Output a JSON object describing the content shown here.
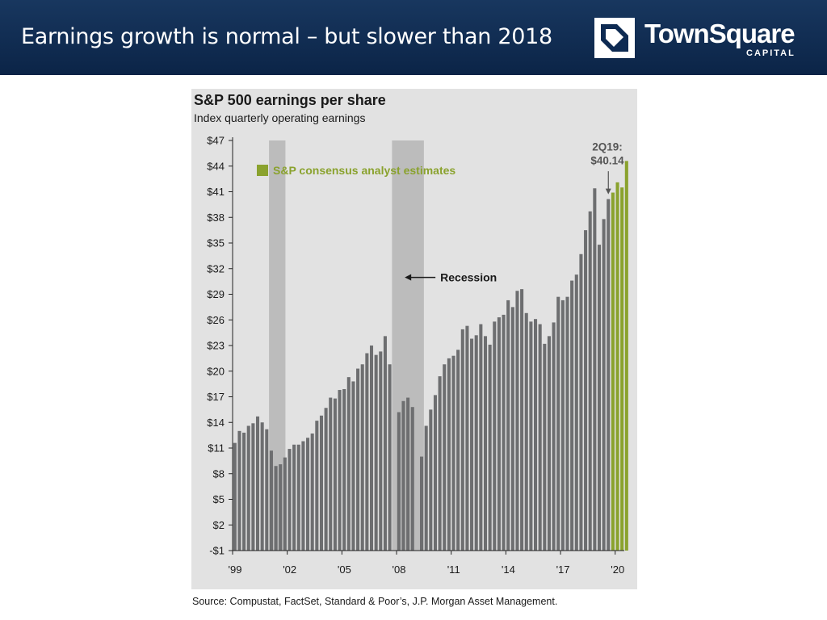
{
  "header": {
    "title": "Earnings growth is normal – but slower than 2018",
    "logo_name": "TownSquare",
    "logo_sub": "CAPITAL",
    "logo_icon": "square-notch-logo-icon"
  },
  "colors": {
    "header_bg": "#0d2a52",
    "actual_bar": "#6d6e70",
    "estimate_bar": "#8aa22e",
    "recession": "#bcbcbc",
    "legend_text": "#8aa22e"
  },
  "chart_data": {
    "type": "bar",
    "title": "S&P 500 earnings per share",
    "subtitle": "Index quarterly operating earnings",
    "ylim": [
      -1,
      47
    ],
    "yticks": [
      47,
      44,
      41,
      38,
      35,
      32,
      29,
      26,
      23,
      20,
      17,
      14,
      11,
      8,
      5,
      2,
      -1
    ],
    "ytick_labels": [
      "$47",
      "$44",
      "$41",
      "$38",
      "$35",
      "$32",
      "$29",
      "$26",
      "$23",
      "$20",
      "$17",
      "$14",
      "$11",
      "$8",
      "$5",
      "$2",
      "-$1"
    ],
    "xtick_labels": [
      "'99",
      "'02",
      "'05",
      "'08",
      "'11",
      "'14",
      "'17",
      "'20"
    ],
    "x_range": [
      1999.0,
      2020.5
    ],
    "xtick_positions": [
      1999,
      2002,
      2005,
      2008,
      2011,
      2014,
      2017,
      2020
    ],
    "grid": false,
    "series": [
      {
        "name": "",
        "start": 1999.0,
        "step": 0.25,
        "values": [
          11.6,
          13.0,
          12.8,
          13.6,
          13.9,
          14.7,
          14.0,
          13.2,
          10.7,
          8.9,
          9.1,
          9.9,
          10.9,
          11.4,
          11.4,
          11.8,
          12.2,
          12.7,
          14.2,
          14.8,
          15.7,
          16.9,
          16.8,
          17.8,
          17.9,
          19.3,
          18.8,
          20.3,
          20.8,
          22.1,
          23.0,
          21.9,
          22.3,
          24.1,
          20.8,
          0,
          15.2,
          16.5,
          16.9,
          15.8,
          0,
          10.0,
          13.6,
          15.5,
          17.2,
          19.4,
          20.8,
          21.5,
          21.8,
          22.5,
          24.9,
          25.3,
          23.8,
          24.2,
          25.5,
          24.1,
          23.1,
          25.8,
          26.3,
          26.6,
          28.3,
          27.5,
          29.4,
          29.6,
          26.8,
          25.8,
          26.1,
          25.5,
          23.2,
          24.1,
          25.7,
          28.7,
          28.3,
          28.7,
          30.6,
          31.3,
          33.7,
          36.5,
          38.7,
          41.4,
          34.8,
          37.8,
          40.14
        ]
      },
      {
        "name": "S&P consensus analyst estimates",
        "start": 2019.75,
        "step": 0.25,
        "values": [
          40.9,
          42.1,
          41.5,
          44.6
        ]
      }
    ],
    "recessions": [
      [
        2001.0,
        2001.9
      ],
      [
        2007.75,
        2009.5
      ]
    ],
    "annotations": [
      {
        "text": "Recession",
        "x": 2010.4,
        "y": 30.6
      },
      {
        "text": "2Q19:",
        "x": 2019.0,
        "y": 46.3
      },
      {
        "text": "$40.14",
        "x": 2019.0,
        "y": 44.7
      }
    ]
  },
  "source": "Source: Compustat, FactSet, Standard & Poor’s, J.P. Morgan Asset Management."
}
